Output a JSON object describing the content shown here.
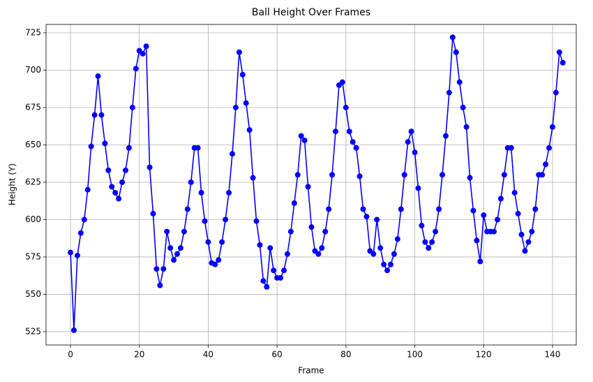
{
  "chart_data": {
    "type": "line",
    "title": "Ball Height Over Frames",
    "xlabel": "Frame",
    "ylabel": "Height (Y)",
    "x": [
      0,
      1,
      2,
      3,
      4,
      5,
      6,
      7,
      8,
      9,
      10,
      11,
      12,
      13,
      14,
      15,
      16,
      17,
      18,
      19,
      20,
      21,
      22,
      23,
      24,
      25,
      26,
      27,
      28,
      29,
      30,
      31,
      32,
      33,
      34,
      35,
      36,
      37,
      38,
      39,
      40,
      41,
      42,
      43,
      44,
      45,
      46,
      47,
      48,
      49,
      50,
      51,
      52,
      53,
      54,
      55,
      56,
      57,
      58,
      59,
      60,
      61,
      62,
      63,
      64,
      65,
      66,
      67,
      68,
      69,
      70,
      71,
      72,
      73,
      74,
      75,
      76,
      77,
      78,
      79,
      80,
      81,
      82,
      83,
      84,
      85,
      86,
      87,
      88,
      89,
      90,
      91,
      92,
      93,
      94,
      95,
      96,
      97,
      98,
      99,
      100,
      101,
      102,
      103,
      104,
      105,
      106,
      107,
      108,
      109,
      110,
      111,
      112,
      113,
      114,
      115,
      116,
      117,
      118,
      119,
      120,
      121,
      122,
      123,
      124,
      125,
      126,
      127,
      128,
      129,
      130,
      131,
      132,
      133,
      134,
      135,
      136,
      137,
      138,
      139,
      140,
      141,
      142,
      143
    ],
    "values": [
      578,
      526,
      576,
      591,
      600,
      620,
      649,
      670,
      696,
      670,
      651,
      633,
      622,
      618,
      614,
      625,
      633,
      648,
      675,
      701,
      713,
      711,
      716,
      635,
      604,
      567,
      556,
      567,
      592,
      581,
      573,
      577,
      581,
      592,
      607,
      625,
      648,
      648,
      618,
      599,
      585,
      571,
      570,
      573,
      585,
      600,
      618,
      644,
      675,
      712,
      697,
      678,
      660,
      628,
      599,
      583,
      559,
      555,
      581,
      566,
      561,
      561,
      566,
      577,
      592,
      611,
      630,
      656,
      653,
      622,
      595,
      579,
      577,
      581,
      592,
      607,
      630,
      659,
      690,
      692,
      675,
      659,
      652,
      648,
      629,
      607,
      602,
      579,
      577,
      600,
      581,
      570,
      566,
      570,
      577,
      587,
      607,
      630,
      652,
      659,
      645,
      621,
      596,
      585,
      581,
      585,
      592,
      607,
      630,
      656,
      685,
      722,
      712,
      692,
      675,
      662,
      628,
      606,
      586,
      572,
      603,
      592,
      592,
      592,
      600,
      614,
      630,
      648,
      648,
      618,
      604,
      590,
      579,
      585,
      592,
      607,
      630,
      630,
      637,
      648,
      662,
      685,
      712,
      705
    ],
    "color": "#0000ff",
    "marker": true,
    "xlim": [
      -7.1,
      146.9
    ],
    "ylim": [
      516.1,
      730.6
    ],
    "xticks": [
      0,
      20,
      40,
      60,
      80,
      100,
      120,
      140
    ],
    "yticks": [
      525,
      550,
      575,
      600,
      625,
      650,
      675,
      700,
      725
    ],
    "grid": true
  }
}
